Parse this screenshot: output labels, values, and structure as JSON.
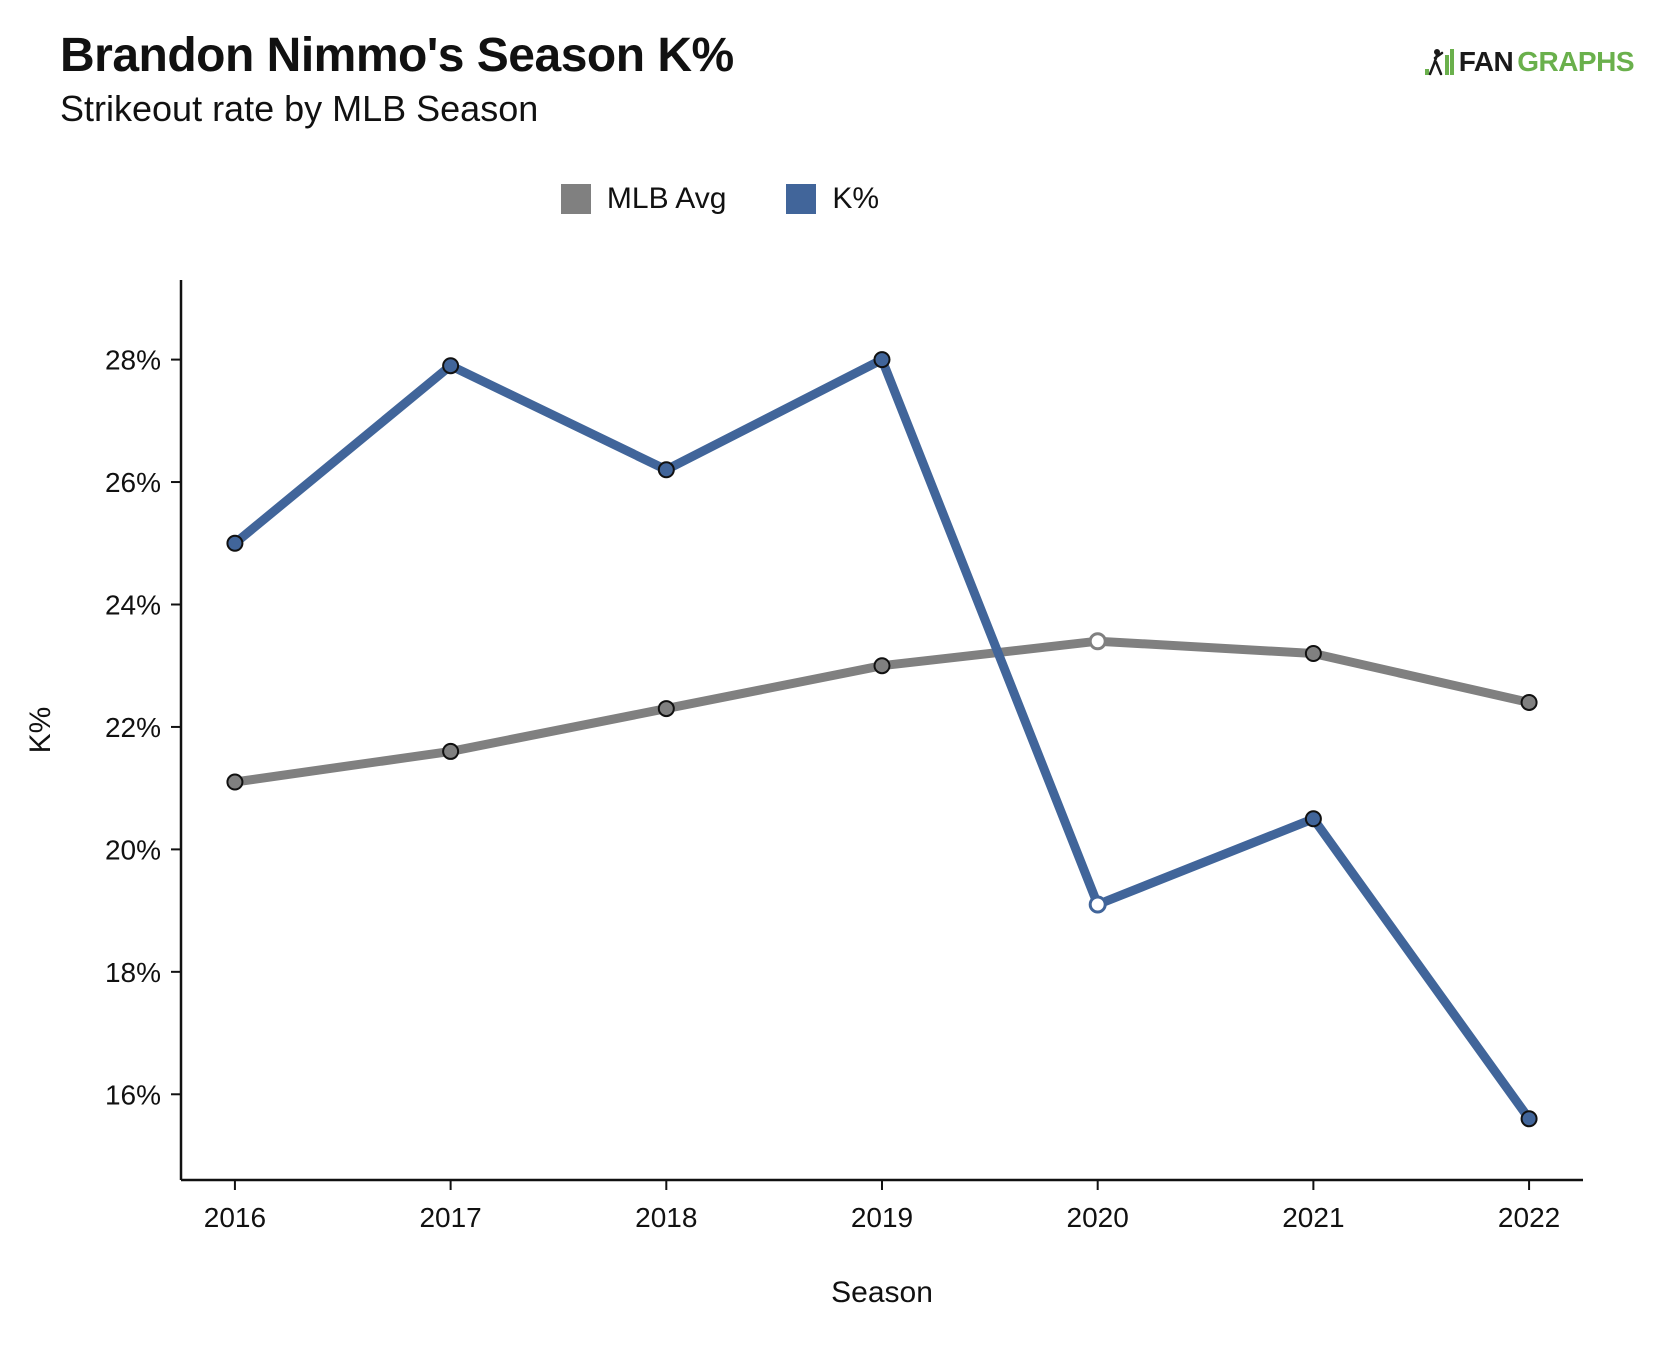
{
  "header": {
    "title": "Brandon Nimmo's Season K%",
    "subtitle": "Strikeout rate by MLB Season"
  },
  "brand": {
    "fan": "FAN",
    "graphs": "GRAPHS",
    "icon": "baseball-player-icon"
  },
  "colors": {
    "mlb_avg": "#808080",
    "k_pct": "#41659a",
    "brand_green": "#6ab04c"
  },
  "chart_data": {
    "type": "line",
    "title": "Brandon Nimmo's Season K%",
    "subtitle": "Strikeout rate by MLB Season",
    "xlabel": "Season",
    "ylabel": "K%",
    "x": [
      2016,
      2017,
      2018,
      2019,
      2020,
      2021,
      2022
    ],
    "x_tick_labels": [
      "2016",
      "2017",
      "2018",
      "2019",
      "2020",
      "2021",
      "2022"
    ],
    "y_ticks": [
      16,
      18,
      20,
      22,
      24,
      26,
      28
    ],
    "y_tick_labels": [
      "16%",
      "18%",
      "20%",
      "22%",
      "24%",
      "26%",
      "28%"
    ],
    "ylim": [
      14.6,
      29.3
    ],
    "xlim": [
      2015.75,
      2022.25
    ],
    "grid": false,
    "legend_placement": "top-center",
    "hollow_marker_season": 2020,
    "series": [
      {
        "name": "MLB Avg",
        "color": "#808080",
        "values": [
          21.1,
          21.6,
          22.3,
          23.0,
          23.4,
          23.2,
          22.4
        ]
      },
      {
        "name": "K%",
        "color": "#41659a",
        "values": [
          25.0,
          27.9,
          26.2,
          28.0,
          19.1,
          20.5,
          15.6
        ]
      }
    ]
  }
}
